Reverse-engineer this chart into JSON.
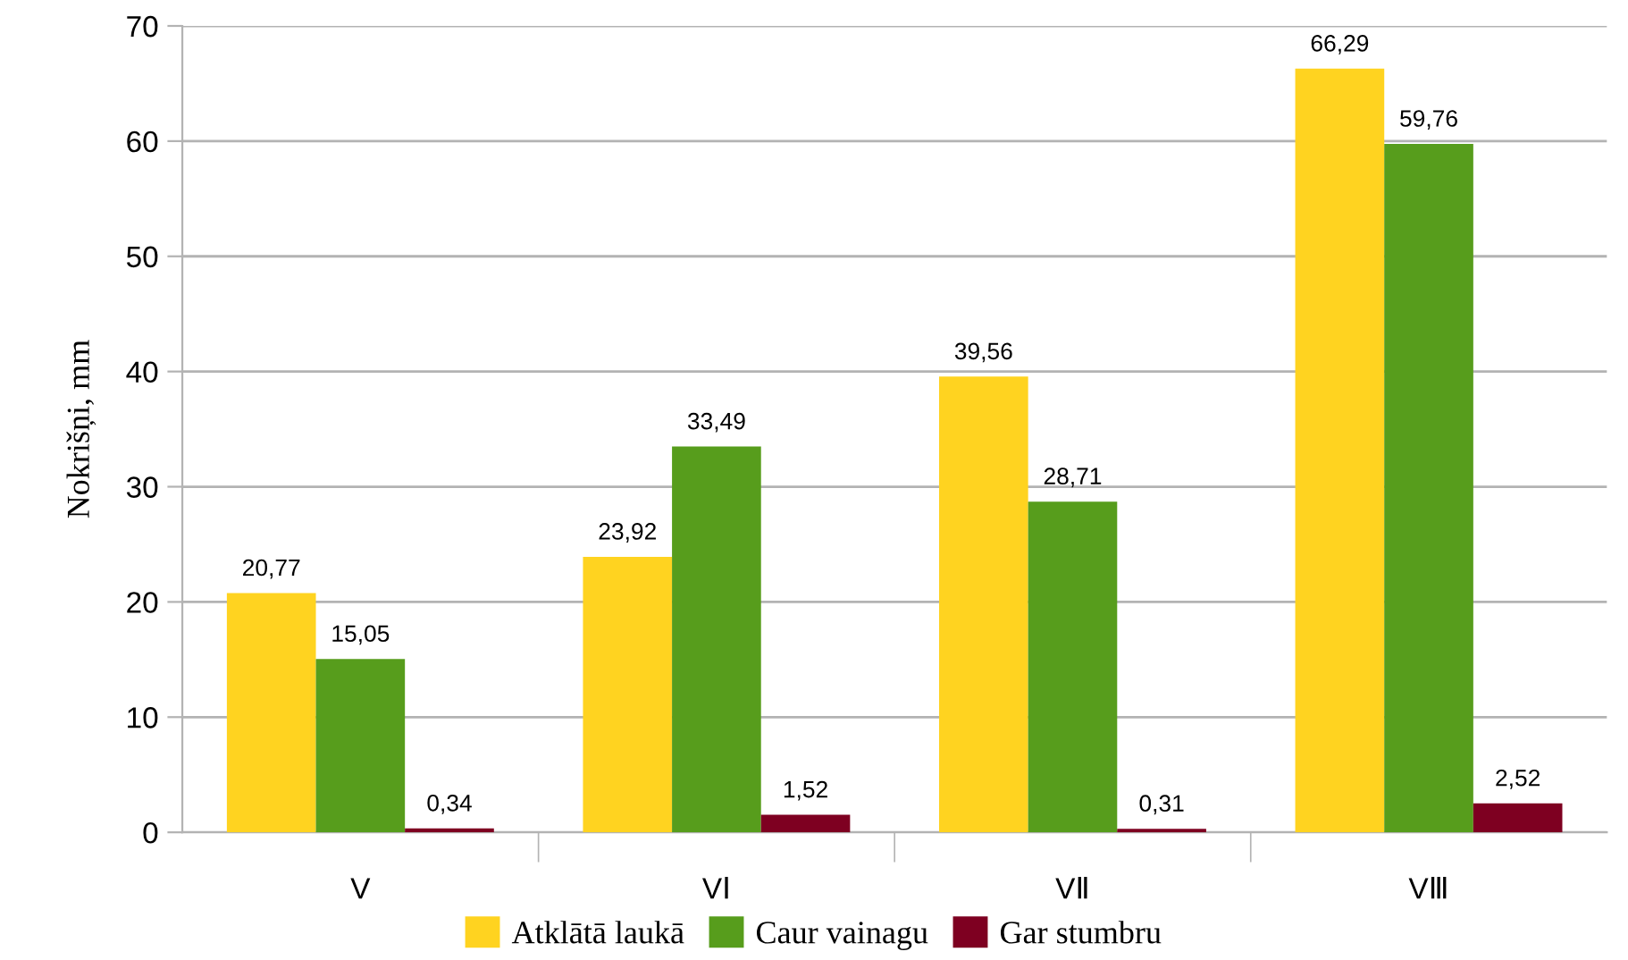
{
  "chart_data": {
    "type": "bar",
    "ylabel": "Nokrišņi, mm",
    "categories": [
      "V",
      "VⅠ",
      "VⅡ",
      "VⅢ"
    ],
    "series": [
      {
        "name": "Atklātā laukā",
        "color": "#ffd320",
        "values": [
          20.77,
          23.92,
          39.56,
          66.29
        ],
        "value_labels": [
          "20,77",
          "23,92",
          "39,56",
          "66,29"
        ]
      },
      {
        "name": "Caur vainagu",
        "color": "#579d1c",
        "values": [
          15.05,
          33.49,
          28.71,
          59.76
        ],
        "value_labels": [
          "15,05",
          "33,49",
          "28,71",
          "59,76"
        ]
      },
      {
        "name": "Gar stumbru",
        "color": "#7e0021",
        "values": [
          0.34,
          1.52,
          0.31,
          2.52
        ],
        "value_labels": [
          "0,34",
          "1,52",
          "0,31",
          "2,52"
        ]
      }
    ],
    "ylim": [
      0,
      70
    ],
    "yticks": [
      0,
      10,
      20,
      30,
      40,
      50,
      60,
      70
    ],
    "grid": "y",
    "legend": "bottom"
  }
}
